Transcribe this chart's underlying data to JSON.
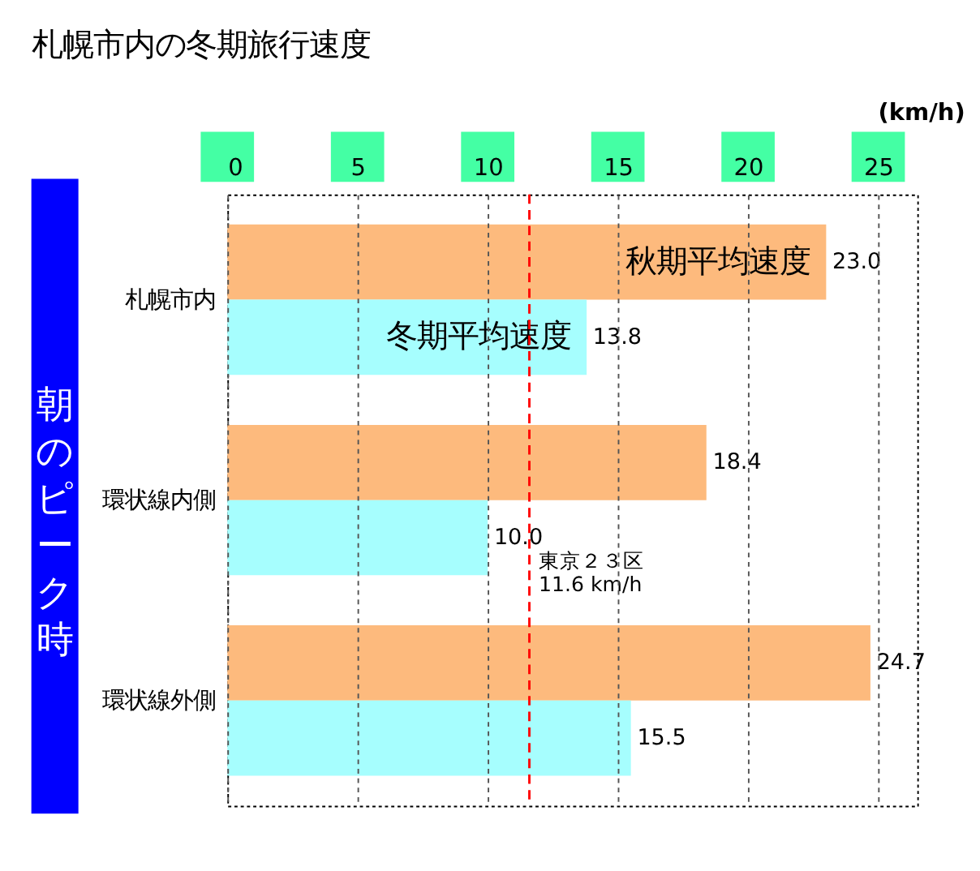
{
  "chart_data": {
    "type": "bar",
    "orientation": "horizontal",
    "title": "札幌市内の冬期旅行速度",
    "xlabel": "(km/h)",
    "ylabel": "朝のピーク時",
    "categories": [
      "札幌市内",
      "環状線内側",
      "環状線外側"
    ],
    "series": [
      {
        "name": "秋期平均速度",
        "color": "#fdba7d",
        "values": [
          23.0,
          18.4,
          24.7
        ],
        "value_labels": [
          "23.0",
          "18.4",
          "24.7"
        ]
      },
      {
        "name": "冬期平均速度",
        "color": "#a6fefe",
        "values": [
          13.8,
          10.0,
          15.5
        ],
        "value_labels": [
          "13.8",
          "10.0",
          "15.5"
        ]
      }
    ],
    "xlim": [
      0,
      26.5
    ],
    "xticks": [
      0,
      5,
      10,
      15,
      20,
      25
    ],
    "grid": "x",
    "legend": false,
    "ref_lines": [
      {
        "axis": "x",
        "value": 11.6,
        "label": "東京２３区\n11.6 km/h",
        "color": "#ff0000",
        "line_style": "dashed"
      }
    ]
  }
}
